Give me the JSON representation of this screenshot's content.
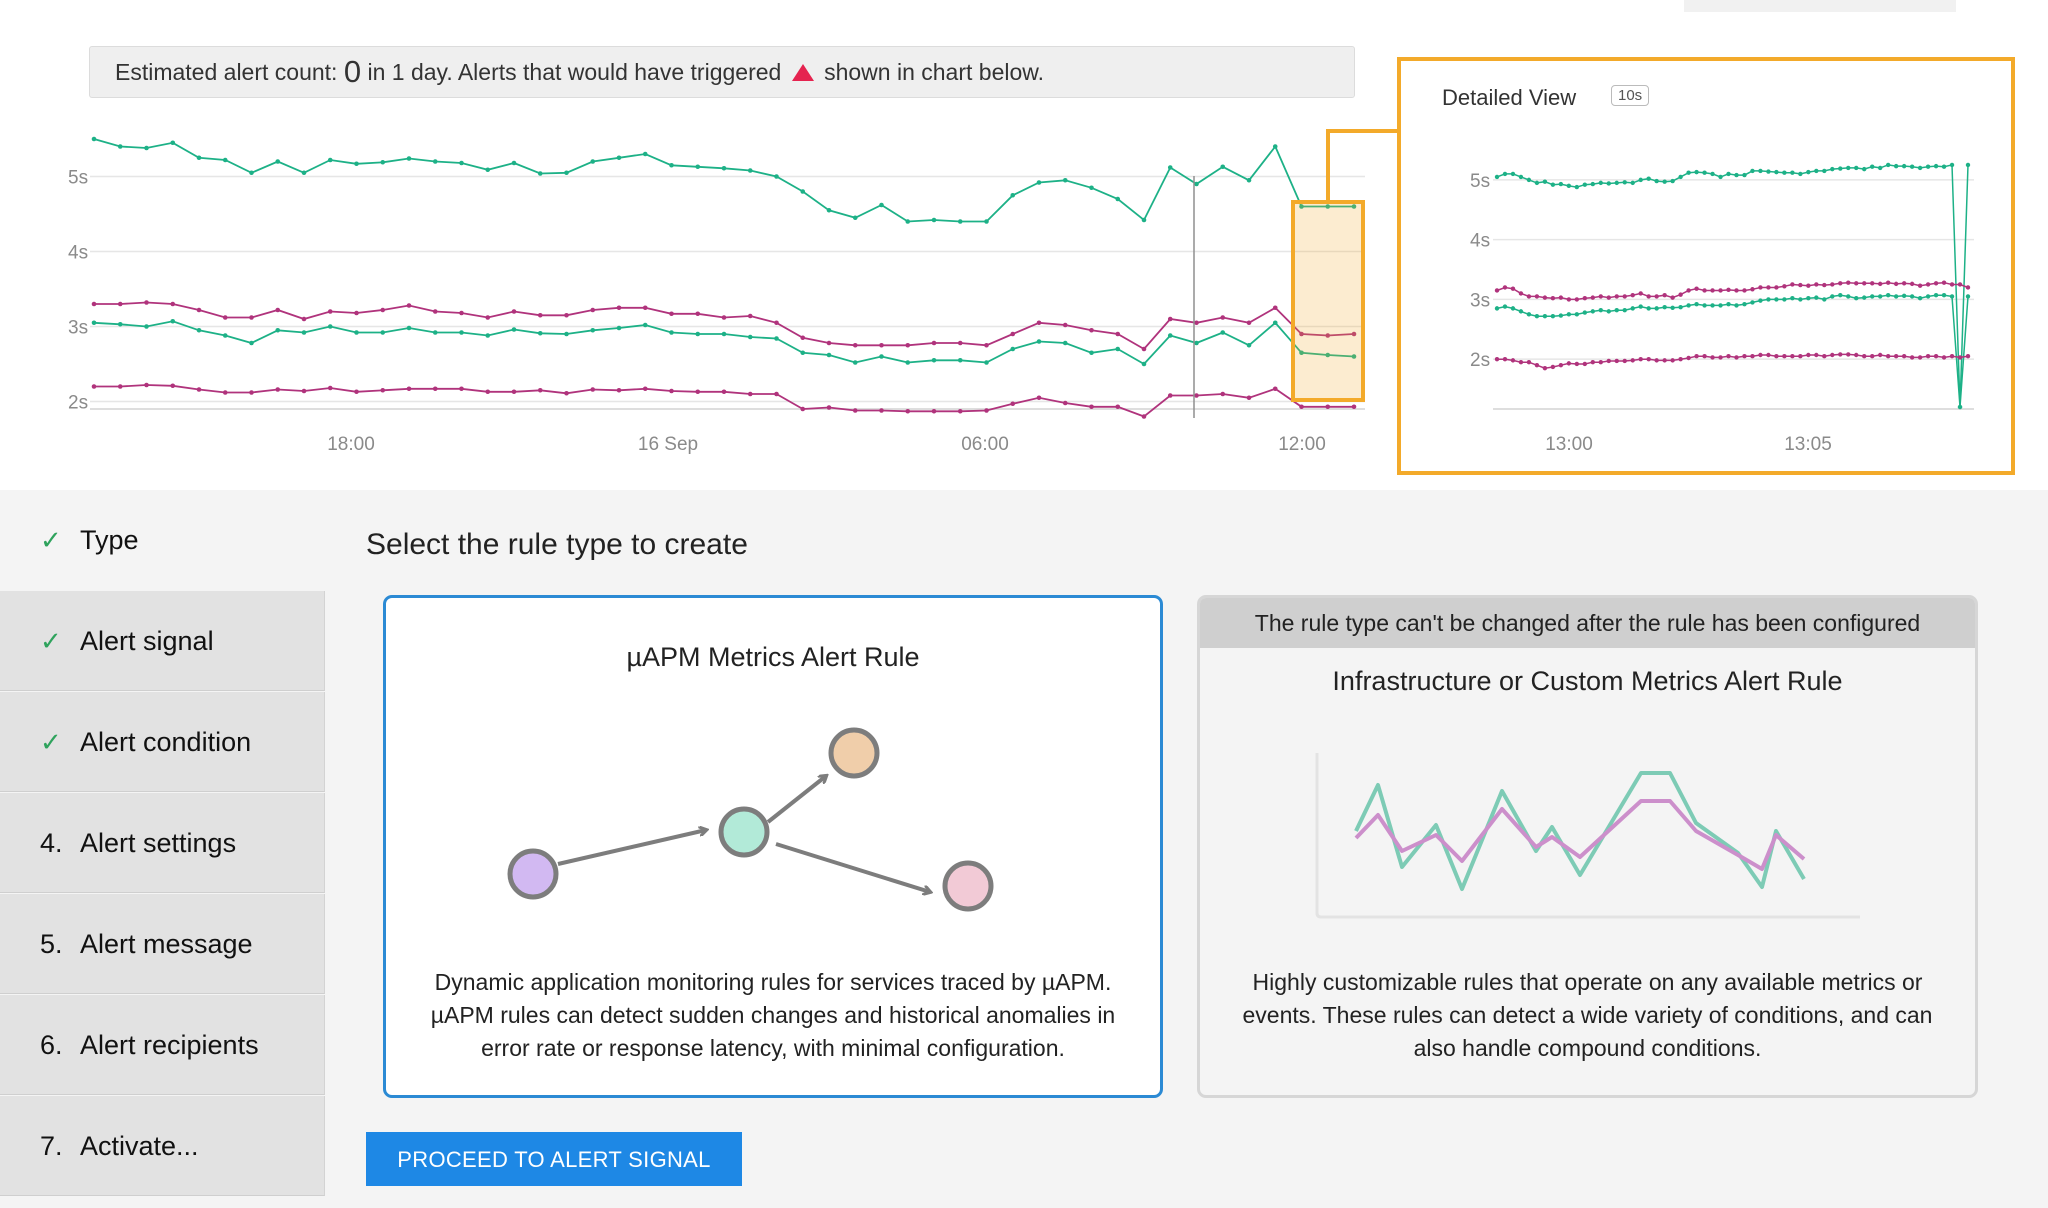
{
  "estimate": {
    "prefix": "Estimated alert count:",
    "count": "0",
    "middle": "in 1 day. Alerts that would have triggered",
    "suffix": "shown in chart below.",
    "marker_icon": "red-triangle-icon"
  },
  "chart_data": [
    {
      "type": "line",
      "title": "",
      "y_ticks": [
        "5s",
        "4s",
        "3s",
        "2s"
      ],
      "x_ticks": [
        "18:00",
        "16 Sep",
        "06:00",
        "12:00"
      ],
      "ylim": [
        1.7,
        5.7
      ],
      "n_points": 49,
      "series": [
        {
          "color": "#1db187",
          "values": [
            5.5,
            5.4,
            5.38,
            5.45,
            5.25,
            5.22,
            5.05,
            5.2,
            5.05,
            5.22,
            5.17,
            5.19,
            5.24,
            5.2,
            5.18,
            5.09,
            5.18,
            5.04,
            5.05,
            5.2,
            5.25,
            5.3,
            5.15,
            5.13,
            5.11,
            5.08,
            5.0,
            4.8,
            4.55,
            4.45,
            4.62,
            4.4,
            4.42,
            4.4,
            4.4,
            4.75,
            4.92,
            4.95,
            4.85,
            4.7,
            4.42,
            5.12,
            4.9,
            5.13,
            4.95,
            5.4,
            4.6,
            4.6,
            4.6
          ]
        },
        {
          "color": "#b0337c",
          "values": [
            3.3,
            3.3,
            3.32,
            3.3,
            3.22,
            3.12,
            3.12,
            3.22,
            3.1,
            3.2,
            3.18,
            3.22,
            3.28,
            3.2,
            3.18,
            3.12,
            3.2,
            3.15,
            3.15,
            3.22,
            3.25,
            3.25,
            3.17,
            3.17,
            3.12,
            3.14,
            3.05,
            2.85,
            2.78,
            2.75,
            2.75,
            2.75,
            2.78,
            2.78,
            2.75,
            2.9,
            3.05,
            3.02,
            2.95,
            2.9,
            2.7,
            3.1,
            3.05,
            3.12,
            3.05,
            3.25,
            2.9,
            2.88,
            2.9
          ]
        },
        {
          "color": "#1db187",
          "values": [
            3.05,
            3.03,
            3.0,
            3.07,
            2.95,
            2.88,
            2.78,
            2.95,
            2.92,
            3.0,
            2.92,
            2.92,
            2.98,
            2.92,
            2.92,
            2.88,
            2.96,
            2.91,
            2.9,
            2.95,
            2.98,
            3.02,
            2.92,
            2.9,
            2.9,
            2.86,
            2.84,
            2.65,
            2.62,
            2.52,
            2.6,
            2.52,
            2.55,
            2.55,
            2.52,
            2.7,
            2.8,
            2.78,
            2.65,
            2.7,
            2.5,
            2.88,
            2.78,
            2.92,
            2.75,
            3.05,
            2.65,
            2.62,
            2.6
          ]
        },
        {
          "color": "#b0337c",
          "values": [
            2.2,
            2.2,
            2.22,
            2.21,
            2.16,
            2.12,
            2.12,
            2.16,
            2.14,
            2.18,
            2.13,
            2.15,
            2.17,
            2.17,
            2.17,
            2.13,
            2.13,
            2.15,
            2.11,
            2.16,
            2.15,
            2.17,
            2.14,
            2.13,
            2.13,
            2.1,
            2.1,
            1.9,
            1.92,
            1.88,
            1.88,
            1.87,
            1.87,
            1.87,
            1.88,
            1.97,
            2.05,
            1.98,
            1.93,
            1.93,
            1.8,
            2.08,
            2.08,
            2.1,
            2.05,
            2.17,
            1.93,
            1.93,
            1.93
          ]
        }
      ]
    },
    {
      "type": "line",
      "title": "Detailed View",
      "badge": "10s",
      "y_ticks": [
        "5s",
        "4s",
        "3s",
        "2s"
      ],
      "x_ticks": [
        "13:00",
        "13:05"
      ],
      "ylim": [
        1.2,
        5.5
      ],
      "n_points": 60,
      "series": [
        {
          "color": "#1db187",
          "values": [
            5.05,
            5.1,
            5.1,
            5.05,
            5.0,
            4.95,
            4.97,
            4.92,
            4.93,
            4.9,
            4.88,
            4.92,
            4.93,
            4.95,
            4.94,
            4.95,
            4.96,
            4.95,
            5.0,
            5.02,
            4.98,
            4.97,
            4.98,
            5.05,
            5.12,
            5.13,
            5.12,
            5.1,
            5.05,
            5.1,
            5.08,
            5.08,
            5.15,
            5.15,
            5.14,
            5.13,
            5.12,
            5.12,
            5.1,
            5.13,
            5.15,
            5.15,
            5.18,
            5.19,
            5.2,
            5.2,
            5.18,
            5.22,
            5.2,
            5.25,
            5.23,
            5.23,
            5.22,
            5.2,
            5.22,
            5.23,
            5.22,
            5.25,
            1.2,
            5.25
          ]
        },
        {
          "color": "#b0337c",
          "values": [
            3.15,
            3.2,
            3.18,
            3.1,
            3.05,
            3.05,
            3.03,
            3.02,
            3.03,
            3.0,
            3.0,
            3.02,
            3.03,
            3.05,
            3.03,
            3.05,
            3.05,
            3.07,
            3.1,
            3.05,
            3.05,
            3.07,
            3.03,
            3.08,
            3.15,
            3.18,
            3.15,
            3.15,
            3.15,
            3.16,
            3.15,
            3.15,
            3.17,
            3.2,
            3.2,
            3.2,
            3.22,
            3.25,
            3.24,
            3.23,
            3.25,
            3.24,
            3.25,
            3.27,
            3.28,
            3.27,
            3.27,
            3.27,
            3.26,
            3.28,
            3.26,
            3.27,
            3.26,
            3.23,
            3.25,
            3.27,
            3.28,
            3.25,
            3.25,
            3.2
          ]
        },
        {
          "color": "#1db187",
          "values": [
            2.85,
            2.88,
            2.85,
            2.8,
            2.75,
            2.72,
            2.72,
            2.72,
            2.73,
            2.75,
            2.75,
            2.78,
            2.8,
            2.82,
            2.8,
            2.82,
            2.82,
            2.85,
            2.88,
            2.85,
            2.85,
            2.87,
            2.86,
            2.87,
            2.9,
            2.92,
            2.9,
            2.9,
            2.9,
            2.92,
            2.9,
            2.92,
            2.95,
            2.98,
            3.0,
            3.0,
            3.0,
            3.02,
            3.0,
            3.02,
            3.03,
            3.0,
            3.05,
            3.07,
            3.05,
            3.02,
            3.03,
            3.05,
            3.05,
            3.07,
            3.05,
            3.06,
            3.05,
            3.02,
            3.05,
            3.07,
            3.07,
            3.05,
            1.2,
            3.05
          ]
        },
        {
          "color": "#b0337c",
          "values": [
            2.0,
            2.0,
            1.98,
            1.95,
            1.95,
            1.9,
            1.85,
            1.87,
            1.9,
            1.93,
            1.92,
            1.92,
            1.95,
            1.95,
            1.97,
            1.97,
            1.97,
            1.98,
            2.0,
            2.0,
            1.98,
            1.98,
            1.98,
            2.0,
            2.02,
            2.05,
            2.05,
            2.03,
            2.03,
            2.05,
            2.03,
            2.05,
            2.05,
            2.07,
            2.07,
            2.05,
            2.05,
            2.05,
            2.05,
            2.07,
            2.07,
            2.05,
            2.07,
            2.08,
            2.08,
            2.07,
            2.05,
            2.05,
            2.07,
            2.05,
            2.05,
            2.05,
            2.03,
            2.03,
            2.05,
            2.05,
            2.03,
            2.05,
            2.03,
            2.05
          ]
        }
      ]
    }
  ],
  "steps": [
    {
      "mark": "✓",
      "label": "Type"
    },
    {
      "mark": "✓",
      "label": "Alert signal"
    },
    {
      "mark": "✓",
      "label": "Alert condition"
    },
    {
      "mark": "4.",
      "label": "Alert settings"
    },
    {
      "mark": "5.",
      "label": "Alert message"
    },
    {
      "mark": "6.",
      "label": "Alert recipients"
    },
    {
      "mark": "7.",
      "label": "Activate..."
    }
  ],
  "section_title": "Select the rule type to create",
  "cards": [
    {
      "title": "µAPM Metrics Alert Rule",
      "description": "Dynamic application monitoring rules for services traced by µAPM. µAPM rules can detect sudden changes and historical anomalies in error rate or response latency, with minimal configuration.",
      "icon": "service-graph-icon"
    },
    {
      "banner": "The rule type can't be changed after the rule has been configured",
      "title": "Infrastructure or Custom Metrics Alert Rule",
      "description": "Highly customizable rules that operate on any available metrics or events. These rules can detect a wide variety of conditions, and can also handle compound conditions.",
      "icon": "metrics-chart-icon"
    }
  ],
  "proceed_button": "PROCEED TO ALERT SIGNAL",
  "colors": {
    "accent": "#1e88e5",
    "selected_border": "#2b8ad4",
    "highlight": "#f3aa2a",
    "green": "#1db187",
    "magenta": "#b0337c",
    "check": "#2fa35d"
  }
}
